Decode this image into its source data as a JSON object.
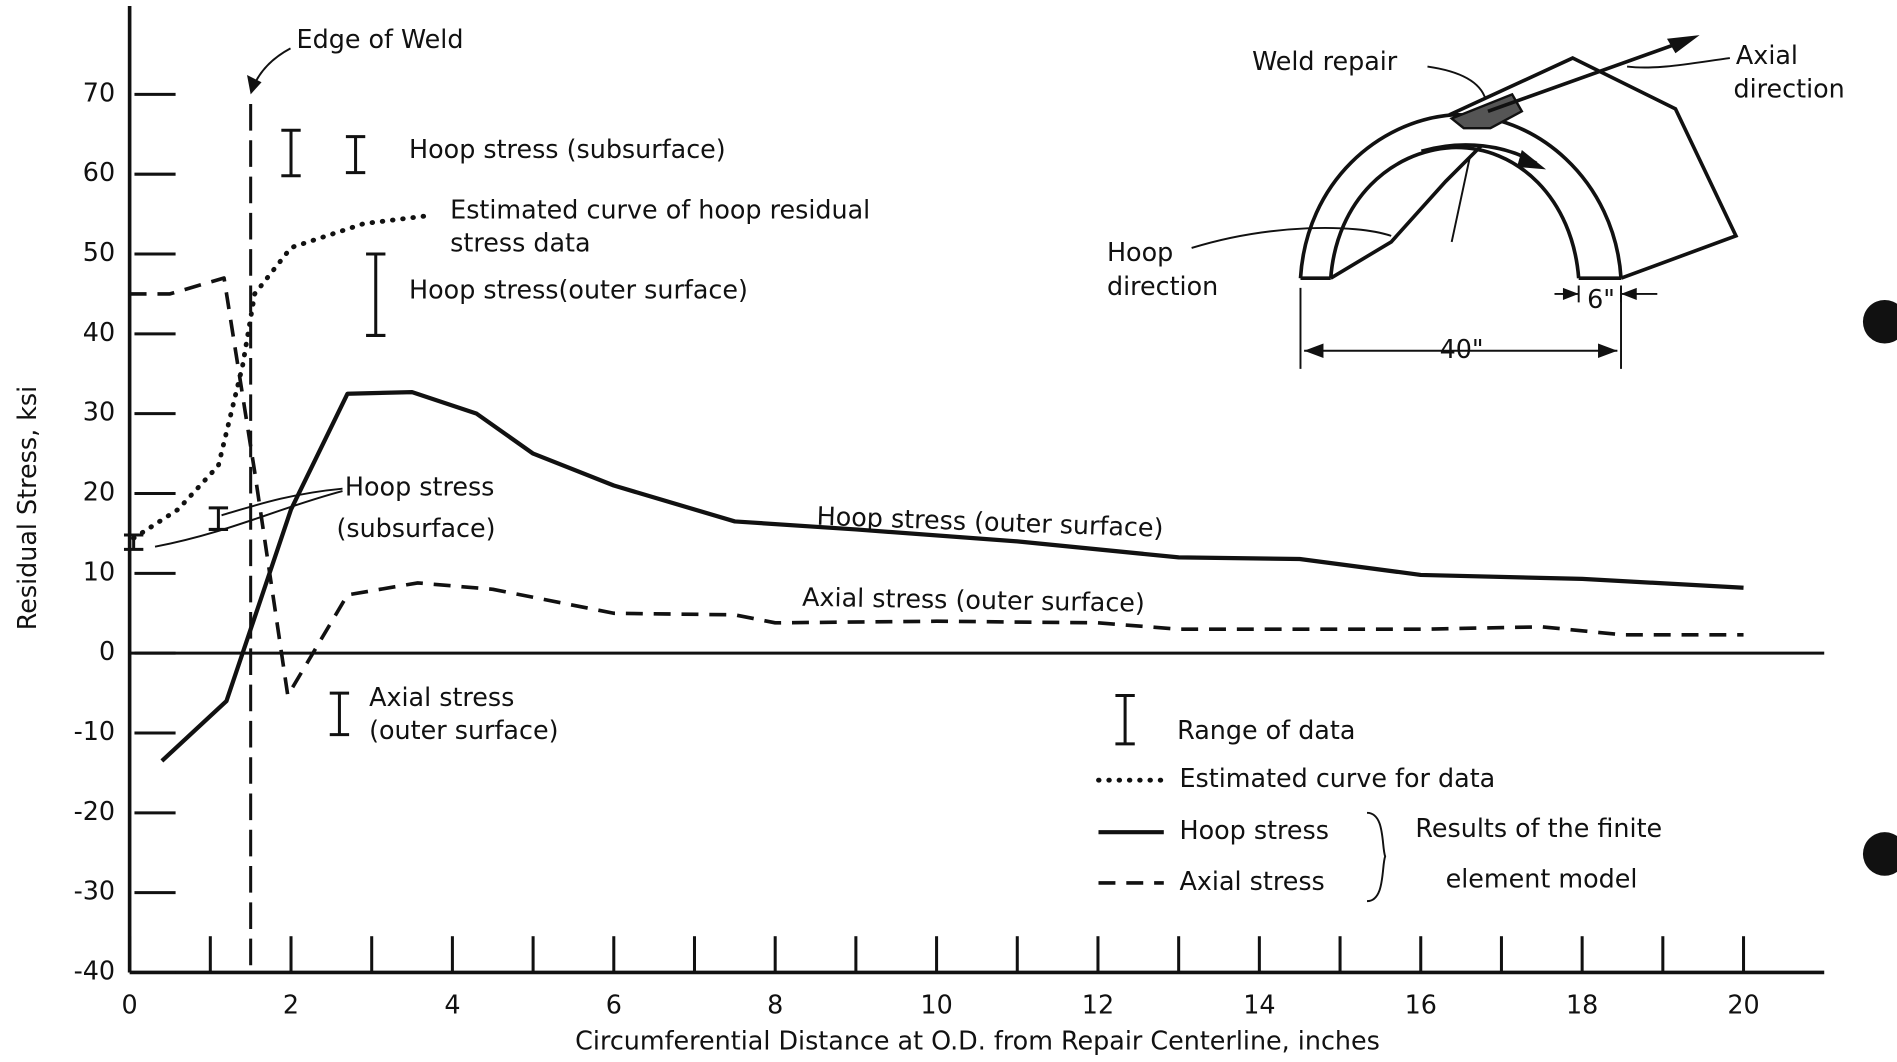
{
  "chart_data": {
    "type": "line",
    "x_label": "Circumferential Distance at O.D. from Repair Centerline, inches",
    "y_label": "Residual Stress, ksi",
    "xlim": [
      0,
      21
    ],
    "ylim": [
      -40,
      80
    ],
    "xticks": [
      0,
      2,
      4,
      6,
      8,
      10,
      12,
      14,
      16,
      18,
      20
    ],
    "xminorticks": [
      1,
      3,
      5,
      7,
      9,
      11,
      13,
      15,
      17,
      19
    ],
    "yticks": [
      -40,
      -30,
      -20,
      -10,
      0,
      10,
      20,
      30,
      40,
      50,
      60,
      70
    ],
    "color": "#111111",
    "series": [
      {
        "name": "Hoop stress",
        "style": "solid",
        "x": [
          0.4,
          1.2,
          1.5,
          2.0,
          2.7,
          3.5,
          4.3,
          5.0,
          6.0,
          7.5,
          9.0,
          11.0,
          13.0,
          14.5,
          16.0,
          18.0,
          20.0
        ],
        "values": [
          -13.5,
          -6,
          3,
          18,
          32.5,
          32.7,
          30,
          25,
          21,
          16.5,
          15.5,
          14,
          12,
          11.8,
          9.8,
          9.3,
          8.2
        ]
      },
      {
        "name": "Axial stress",
        "style": "dashed",
        "x": [
          0,
          0.5,
          1.17,
          1.55,
          1.96,
          2.7,
          3.57,
          4.5,
          6.0,
          7.5,
          8.0,
          10.0,
          12.0,
          13.0,
          16.0,
          17.5,
          18.5,
          20.0
        ],
        "values": [
          45,
          45,
          47,
          22.7,
          -5.3,
          7.3,
          8.8,
          8,
          5,
          4.8,
          3.8,
          4,
          3.8,
          3,
          3,
          3.3,
          2.3,
          2.3
        ]
      },
      {
        "name": "Estimated curve for data",
        "style": "dotted",
        "x": [
          0.05,
          0.6,
          1.1,
          1.4,
          1.55,
          2.0,
          2.9,
          3.7
        ],
        "values": [
          14.4,
          18,
          23.5,
          36,
          45,
          50.8,
          53.8,
          54.8
        ]
      }
    ],
    "error_bars": {
      "name": "Range of data",
      "points": [
        {
          "x": 0.05,
          "low": 13.0,
          "high": 14.8
        },
        {
          "x": 1.1,
          "low": 15.5,
          "high": 18.2
        },
        {
          "x": 2.0,
          "low": 59.8,
          "high": 65.5
        },
        {
          "x": 2.8,
          "low": 60.2,
          "high": 64.7
        },
        {
          "x": 3.05,
          "low": 39.8,
          "high": 50
        },
        {
          "x": 2.6,
          "low": -10.2,
          "high": -5
        }
      ]
    },
    "legend_group_label": [
      "Results of the finite",
      "element model"
    ],
    "weld_edge": {
      "label": "Edge of Weld",
      "x": 1.5,
      "range": [
        -40,
        70
      ]
    },
    "annotations": [
      {
        "text": [
          "Hoop stress (subsurface)"
        ]
      },
      {
        "text": [
          "Estimated curve of hoop residual",
          "stress data"
        ]
      },
      {
        "text": [
          "Hoop stress(outer surface)"
        ]
      },
      {
        "text": [
          "Hoop stress",
          "(subsurface)"
        ]
      },
      {
        "text": [
          "Hoop stress (outer surface)"
        ]
      },
      {
        "text": [
          "Axial stress (outer surface)"
        ]
      },
      {
        "text": [
          "Axial stress",
          "(outer surface)"
        ]
      }
    ]
  },
  "inset": {
    "weld_repair": "Weld repair",
    "axial_direction": [
      "Axial",
      "direction"
    ],
    "hoop_direction": [
      "Hoop",
      "direction"
    ],
    "thickness": "6\"",
    "width": "40\""
  }
}
